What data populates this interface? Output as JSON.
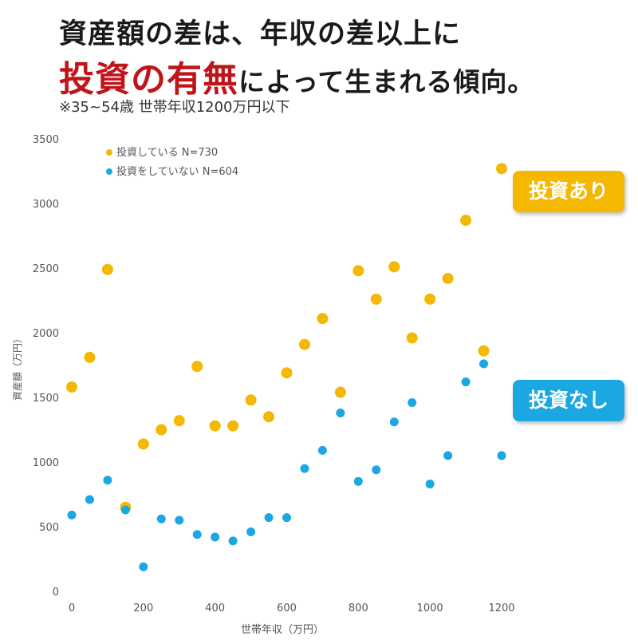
{
  "header": {
    "line1": "資産額の差は、年収の差以上に",
    "line2_emphasis": "投資の有無",
    "line2_rest": "によって生まれる傾向。",
    "note": "※35~54歳 世帯年収1200万円以下"
  },
  "badges": {
    "invest": "投資あり",
    "no_invest": "投資なし"
  },
  "colors": {
    "invest": "#F5B800",
    "no_invest": "#1AA7E2",
    "emphasis": "#C0141B",
    "axis_text": "#555555"
  },
  "chart_data": {
    "type": "scatter",
    "xlabel": "世帯年収（万円）",
    "ylabel": "資産額（万円）",
    "xlim": [
      0,
      1200
    ],
    "ylim": [
      0,
      3500
    ],
    "x_ticks": [
      0,
      200,
      400,
      600,
      800,
      1000,
      1200
    ],
    "y_ticks": [
      0,
      500,
      1000,
      1500,
      2000,
      2500,
      3000,
      3500
    ],
    "grid": false,
    "legend_position": "top-left",
    "series": [
      {
        "name": "投資している N=730",
        "color": "#F5B800",
        "points": [
          [
            0,
            1580
          ],
          [
            50,
            1810
          ],
          [
            100,
            2490
          ],
          [
            150,
            650
          ],
          [
            200,
            1140
          ],
          [
            250,
            1250
          ],
          [
            300,
            1320
          ],
          [
            350,
            1740
          ],
          [
            400,
            1280
          ],
          [
            450,
            1280
          ],
          [
            500,
            1480
          ],
          [
            550,
            1350
          ],
          [
            600,
            1690
          ],
          [
            650,
            1910
          ],
          [
            700,
            2110
          ],
          [
            750,
            1540
          ],
          [
            800,
            2480
          ],
          [
            850,
            2260
          ],
          [
            900,
            2510
          ],
          [
            950,
            1960
          ],
          [
            1000,
            2260
          ],
          [
            1050,
            2420
          ],
          [
            1100,
            2870
          ],
          [
            1150,
            1860
          ],
          [
            1200,
            3270
          ]
        ]
      },
      {
        "name": "投資をしていない N=604",
        "color": "#1AA7E2",
        "points": [
          [
            0,
            590
          ],
          [
            50,
            710
          ],
          [
            100,
            860
          ],
          [
            150,
            630
          ],
          [
            200,
            190
          ],
          [
            250,
            560
          ],
          [
            300,
            550
          ],
          [
            350,
            440
          ],
          [
            400,
            420
          ],
          [
            450,
            390
          ],
          [
            500,
            460
          ],
          [
            550,
            570
          ],
          [
            600,
            570
          ],
          [
            650,
            950
          ],
          [
            700,
            1090
          ],
          [
            750,
            1380
          ],
          [
            800,
            850
          ],
          [
            850,
            940
          ],
          [
            900,
            1310
          ],
          [
            950,
            1460
          ],
          [
            1000,
            830
          ],
          [
            1050,
            1050
          ],
          [
            1100,
            1620
          ],
          [
            1150,
            1760
          ],
          [
            1200,
            1050
          ]
        ]
      }
    ]
  }
}
